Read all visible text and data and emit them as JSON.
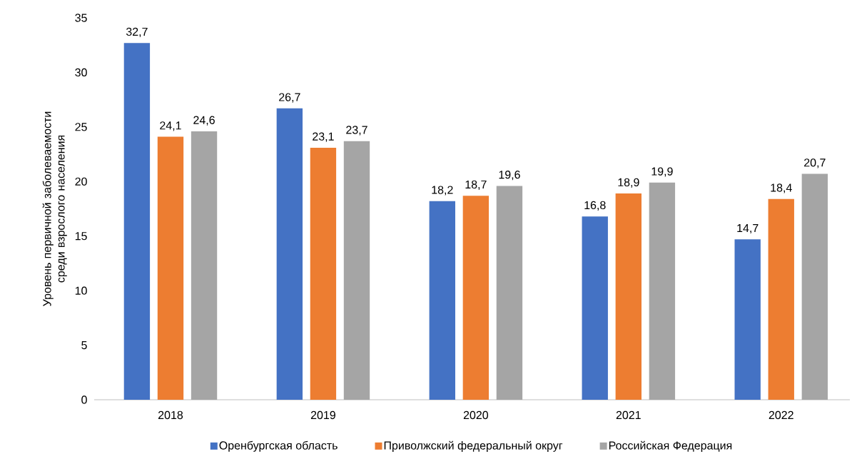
{
  "chart_data": {
    "type": "bar",
    "ylabel": "Уровень первичной заболеваемости среди взрослого населения",
    "categories": [
      "2018",
      "2019",
      "2020",
      "2021",
      "2022"
    ],
    "series": [
      {
        "name": "Оренбургская область",
        "color": "#4472c4",
        "values": [
          32.7,
          26.7,
          18.2,
          16.8,
          14.7
        ],
        "value_labels": [
          "32,7",
          "26,7",
          "18,2",
          "16,8",
          "14,7"
        ]
      },
      {
        "name": "Приволжский федеральный округ",
        "color": "#ed7d31",
        "values": [
          24.1,
          23.1,
          18.7,
          18.9,
          18.4
        ],
        "value_labels": [
          "24,1",
          "23,1",
          "18,7",
          "18,9",
          "18,4"
        ]
      },
      {
        "name": "Российская Федерация",
        "color": "#a5a5a5",
        "values": [
          24.6,
          23.7,
          19.6,
          19.9,
          20.7
        ],
        "value_labels": [
          "24,6",
          "23,7",
          "19,6",
          "19,9",
          "20,7"
        ]
      }
    ],
    "ylim": [
      0,
      35
    ],
    "yticks": [
      0,
      5,
      10,
      15,
      20,
      25,
      30,
      35
    ],
    "legend": "bottom"
  }
}
